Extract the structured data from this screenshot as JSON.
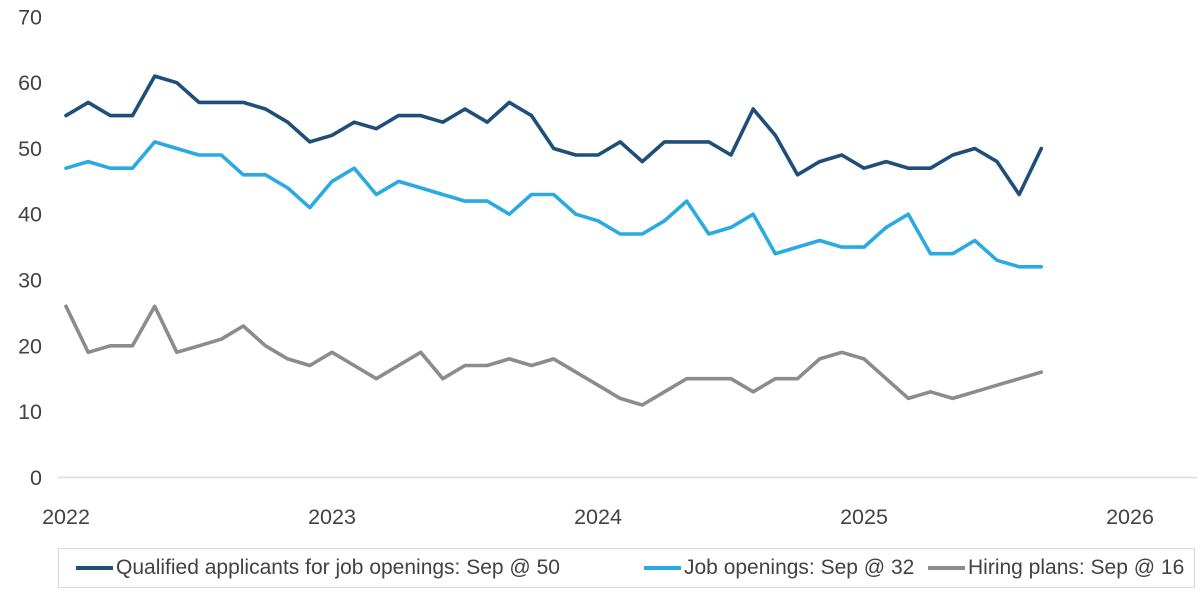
{
  "chart_data": {
    "type": "line",
    "title": "",
    "xlabel": "",
    "ylabel": "",
    "grid": false,
    "legend_position": "bottom",
    "ylim": [
      0,
      70
    ],
    "y_ticks": [
      0,
      10,
      20,
      30,
      40,
      50,
      60,
      70
    ],
    "x_tick_labels": [
      "2022",
      "2023",
      "2024",
      "2025",
      "2026"
    ],
    "x_start": "Jan 2022",
    "x_end": "Sep 2025",
    "frequency": "monthly",
    "x_months": [
      "Jan 2022",
      "Feb 2022",
      "Mar 2022",
      "Apr 2022",
      "May 2022",
      "Jun 2022",
      "Jul 2022",
      "Aug 2022",
      "Sep 2022",
      "Oct 2022",
      "Nov 2022",
      "Dec 2022",
      "Jan 2023",
      "Feb 2023",
      "Mar 2023",
      "Apr 2023",
      "May 2023",
      "Jun 2023",
      "Jul 2023",
      "Aug 2023",
      "Sep 2023",
      "Oct 2023",
      "Nov 2023",
      "Dec 2023",
      "Jan 2024",
      "Feb 2024",
      "Mar 2024",
      "Apr 2024",
      "May 2024",
      "Jun 2024",
      "Jul 2024",
      "Aug 2024",
      "Sep 2024",
      "Oct 2024",
      "Nov 2024",
      "Dec 2024",
      "Jan 2025",
      "Feb 2025",
      "Mar 2025",
      "Apr 2025",
      "May 2025",
      "Jun 2025",
      "Jul 2025",
      "Aug 2025",
      "Sep 2025"
    ],
    "series": [
      {
        "name": "Qualified applicants for job openings",
        "legend_label": "Qualified applicants for job openings: Sep @ 50",
        "color": "#1F4E79",
        "latest_month": "Sep",
        "latest_value": 50,
        "values": [
          55,
          57,
          55,
          55,
          61,
          60,
          57,
          57,
          57,
          56,
          54,
          51,
          52,
          54,
          53,
          55,
          55,
          54,
          56,
          54,
          57,
          55,
          50,
          49,
          49,
          51,
          48,
          51,
          51,
          51,
          49,
          56,
          52,
          46,
          48,
          49,
          47,
          48,
          47,
          47,
          49,
          50,
          48,
          43,
          50
        ]
      },
      {
        "name": "Job openings",
        "legend_label": "Job openings: Sep @ 32",
        "color": "#29ABE2",
        "latest_month": "Sep",
        "latest_value": 32,
        "values": [
          47,
          48,
          47,
          47,
          51,
          50,
          49,
          49,
          46,
          46,
          44,
          41,
          45,
          47,
          43,
          45,
          44,
          43,
          42,
          42,
          40,
          43,
          43,
          40,
          39,
          37,
          37,
          39,
          42,
          37,
          38,
          40,
          34,
          35,
          36,
          35,
          35,
          38,
          40,
          34,
          34,
          36,
          33,
          32,
          32
        ]
      },
      {
        "name": "Hiring plans",
        "legend_label": "Hiring plans: Sep @ 16",
        "color": "#8C8C8C",
        "latest_month": "Sep",
        "latest_value": 16,
        "values": [
          26,
          19,
          20,
          20,
          26,
          19,
          20,
          21,
          23,
          20,
          18,
          17,
          19,
          17,
          15,
          17,
          19,
          15,
          17,
          17,
          18,
          17,
          18,
          16,
          14,
          12,
          11,
          13,
          15,
          15,
          15,
          13,
          15,
          15,
          18,
          19,
          18,
          15,
          12,
          13,
          12,
          13,
          14,
          15,
          16
        ]
      }
    ],
    "colors": {
      "axis_line": "#dbdbdb",
      "tick_text": "#424242",
      "legend_border": "#d9d9d9",
      "background": "#ffffff"
    }
  }
}
